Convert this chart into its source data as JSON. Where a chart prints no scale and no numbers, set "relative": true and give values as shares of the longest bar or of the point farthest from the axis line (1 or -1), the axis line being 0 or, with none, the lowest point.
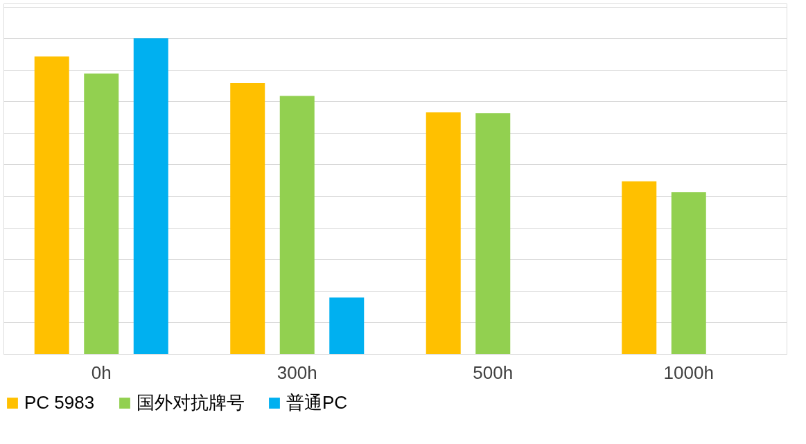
{
  "chart_data": {
    "type": "bar",
    "relative": true,
    "grid": "y",
    "legend": "bottom",
    "categories": [
      "0h",
      "300h",
      "500h",
      "1000h"
    ],
    "series": [
      {
        "name": "PC 5983",
        "color": "#ffc000",
        "values": [
          0.942,
          0.858,
          0.765,
          0.547
        ]
      },
      {
        "name": "国外对抗牌号",
        "color": "#92d050",
        "values": [
          0.888,
          0.817,
          0.763,
          0.513
        ]
      },
      {
        "name": "普通PC",
        "color": "#00b0f0",
        "values": [
          1,
          0.179,
          null,
          null
        ]
      }
    ]
  }
}
